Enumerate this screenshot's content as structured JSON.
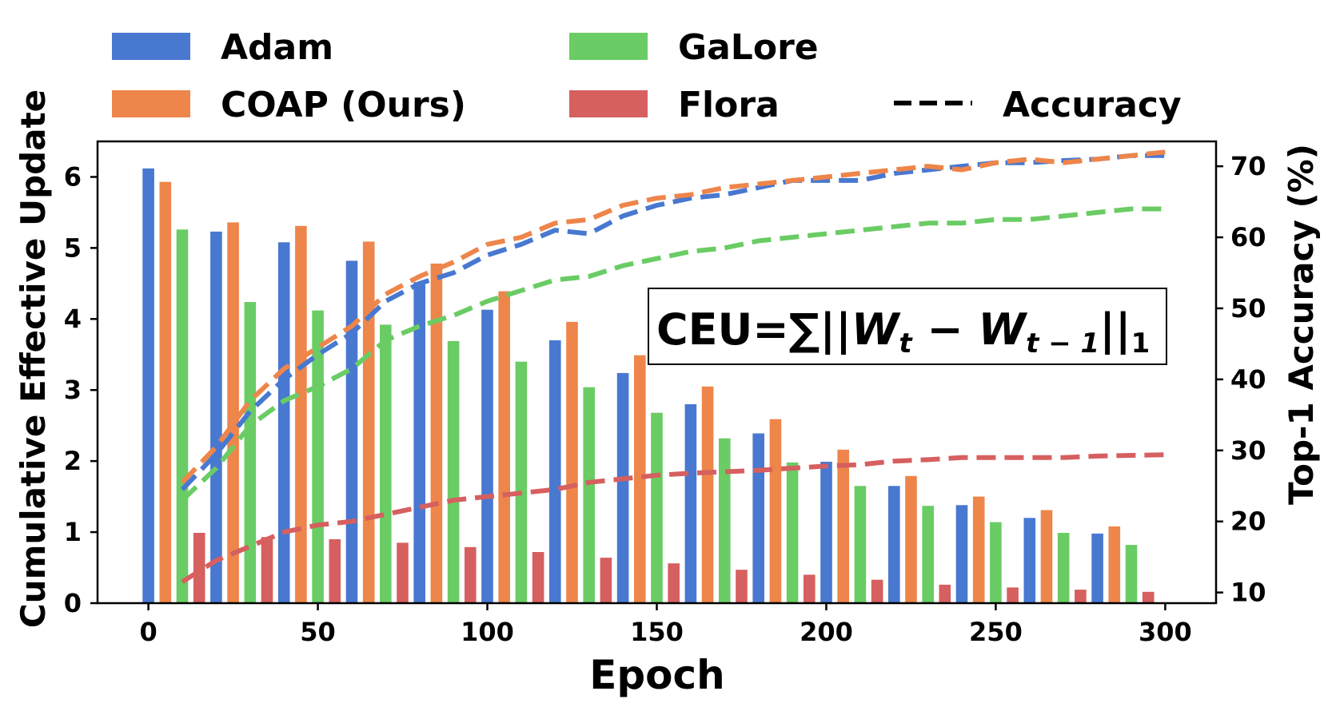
{
  "chart_data": {
    "type": "bar",
    "xlabel": "Epoch",
    "ylabel": "Cumulative Effective Update",
    "y2label": "Top-1 Accuracy (%)",
    "xlim": [
      -15,
      315
    ],
    "ylim": [
      0,
      6.5
    ],
    "y2lim": [
      8.5,
      73.5
    ],
    "xticks": [
      0,
      50,
      100,
      150,
      200,
      250,
      300
    ],
    "yticks": [
      0,
      1,
      2,
      3,
      4,
      5,
      6
    ],
    "y2ticks": [
      10,
      20,
      30,
      40,
      50,
      60,
      70
    ],
    "grid": false,
    "annotation": {
      "lhs": "CEU=∑||",
      "w": "W",
      "sub_t": "t",
      "minus": " − ",
      "sub_t1": "t − 1",
      "rhs": "||",
      "sub_1": "1"
    },
    "legend": {
      "placement": "top, outside plot",
      "entries": [
        "Adam",
        "COAP (Ours)",
        "GaLore",
        "Flora",
        "Accuracy"
      ]
    },
    "categories": [
      0,
      20,
      40,
      60,
      80,
      100,
      120,
      140,
      160,
      180,
      200,
      220,
      240,
      260,
      280
    ],
    "series": [
      {
        "name": "Adam",
        "color": "#4878d0",
        "values": [
          6.12,
          5.23,
          5.08,
          4.82,
          4.52,
          4.13,
          3.7,
          3.24,
          2.8,
          2.39,
          1.99,
          1.65,
          1.38,
          1.2,
          0.98
        ]
      },
      {
        "name": "COAP (Ours)",
        "color": "#ee854a",
        "values": [
          5.93,
          5.36,
          5.31,
          5.09,
          4.78,
          4.39,
          3.96,
          3.49,
          3.05,
          2.59,
          2.16,
          1.79,
          1.5,
          1.31,
          1.08
        ]
      },
      {
        "name": "GaLore",
        "color": "#6acc64",
        "values": [
          5.26,
          4.24,
          4.12,
          3.92,
          3.69,
          3.4,
          3.04,
          2.68,
          2.32,
          1.98,
          1.65,
          1.37,
          1.14,
          0.99,
          0.82
        ]
      },
      {
        "name": "Flora",
        "color": "#d65f5f",
        "values": [
          0.99,
          0.93,
          0.9,
          0.85,
          0.79,
          0.72,
          0.64,
          0.56,
          0.47,
          0.4,
          0.33,
          0.26,
          0.22,
          0.19,
          0.16
        ]
      }
    ],
    "accuracy_lines": [
      {
        "name": "Adam",
        "color": "#4878d0",
        "x": [
          10,
          20,
          30,
          40,
          50,
          60,
          70,
          80,
          90,
          100,
          110,
          120,
          130,
          140,
          150,
          160,
          170,
          180,
          190,
          200,
          210,
          220,
          230,
          240,
          250,
          260,
          270,
          280,
          290,
          300
        ],
        "y": [
          24.5,
          29.5,
          35.5,
          40,
          43.5,
          46.5,
          51,
          53.5,
          55,
          57.5,
          59,
          61,
          60.5,
          63,
          64.5,
          65.5,
          66,
          67,
          68,
          68,
          68,
          69,
          69.5,
          70,
          70.5,
          70.5,
          70.8,
          71,
          71.5,
          71.5
        ]
      },
      {
        "name": "COAP (Ours)",
        "color": "#ee854a",
        "x": [
          10,
          20,
          30,
          40,
          50,
          60,
          70,
          80,
          90,
          100,
          110,
          120,
          130,
          140,
          150,
          160,
          170,
          180,
          190,
          200,
          210,
          220,
          230,
          240,
          250,
          260,
          270,
          280,
          290,
          300
        ],
        "y": [
          25.5,
          30.5,
          37,
          41.5,
          44.5,
          47.5,
          52,
          54.5,
          56.5,
          59,
          60,
          62,
          62.5,
          64.5,
          65.5,
          66,
          67,
          67.5,
          68,
          68.5,
          69,
          69.5,
          70,
          69.5,
          70.5,
          71,
          70.5,
          71,
          71.5,
          72
        ]
      },
      {
        "name": "GaLore",
        "color": "#6acc64",
        "x": [
          10,
          20,
          30,
          40,
          50,
          60,
          70,
          80,
          90,
          100,
          110,
          120,
          130,
          140,
          150,
          160,
          170,
          180,
          190,
          200,
          210,
          220,
          230,
          240,
          250,
          260,
          270,
          280,
          290,
          300
        ],
        "y": [
          23,
          27.5,
          33.5,
          37,
          39,
          41.5,
          45.5,
          47.5,
          49,
          51,
          52.5,
          54,
          54.5,
          56,
          57,
          58,
          58.5,
          59.5,
          60,
          60.5,
          61,
          61.5,
          62,
          62,
          62.5,
          62.5,
          63,
          63.5,
          64,
          64
        ]
      },
      {
        "name": "Flora",
        "color": "#d65f5f",
        "x": [
          10,
          20,
          30,
          40,
          50,
          60,
          70,
          80,
          90,
          100,
          110,
          120,
          130,
          140,
          150,
          160,
          170,
          180,
          190,
          200,
          210,
          220,
          230,
          240,
          250,
          260,
          270,
          280,
          290,
          300
        ],
        "y": [
          11.5,
          14.5,
          16.5,
          18.5,
          19.5,
          20,
          21,
          22,
          23,
          23.5,
          24,
          24.5,
          25.5,
          26,
          26.5,
          26.8,
          27,
          27.2,
          27.5,
          27.8,
          28,
          28.5,
          28.7,
          29,
          29,
          29,
          29,
          29.2,
          29.3,
          29.4
        ]
      }
    ]
  }
}
